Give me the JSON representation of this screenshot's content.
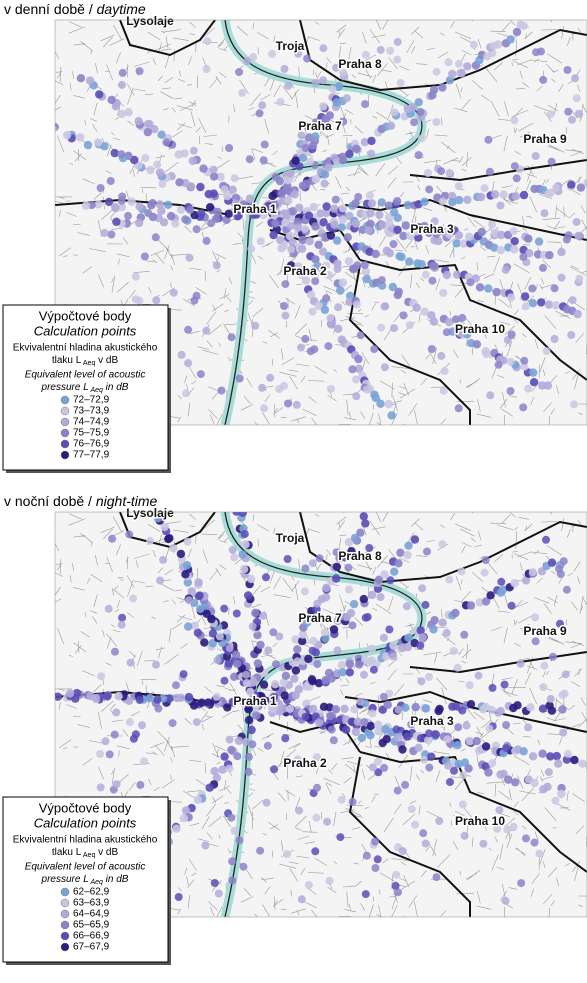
{
  "panels": [
    {
      "title_cz": "v denní době /",
      "title_en": "daytime",
      "places": [
        "Lysolaje",
        "Troja",
        "Praha 8",
        "Praha 7",
        "Praha 9",
        "Praha 1",
        "Praha 3",
        "Praha 2",
        "Praha 10"
      ],
      "legend": {
        "title": "Výpočtové body",
        "subtitle": "Calculation points",
        "desc_cz_1": "Ekvivalentní hladina akustického",
        "desc_cz_2": "tlaku L",
        "desc_cz_sub": "Aeq",
        "desc_cz_3": "v dB",
        "desc_en_1": "Equivalent level of acoustic",
        "desc_en_2": "pressure L",
        "desc_en_sub": "Aeq",
        "desc_en_3": "in dB",
        "items": [
          "72–72,9",
          "73–73,9",
          "74–74,9",
          "75–75,9",
          "76–76,9",
          "77–77,9"
        ]
      }
    },
    {
      "title_cz": "v noční době /",
      "title_en": "night-time",
      "places": [
        "Lysolaje",
        "Troja",
        "Praha 8",
        "Praha 7",
        "Praha 9",
        "Praha 1",
        "Praha 3",
        "Praha 2",
        "Praha 10"
      ],
      "legend": {
        "title": "Výpočtové body",
        "subtitle": "Calculation points",
        "desc_cz_1": "Ekvivalentní hladina akustického",
        "desc_cz_2": "tlaku L",
        "desc_cz_sub": "Aeq",
        "desc_cz_3": "v dB",
        "desc_en_1": "Equivalent level of acoustic",
        "desc_en_2": "pressure L",
        "desc_en_sub": "Aeq",
        "desc_en_3": "in dB",
        "items": [
          "62–62,9",
          "63–63,9",
          "64–64,9",
          "65–65,9",
          "66–66,9",
          "67–67,9"
        ]
      }
    }
  ]
}
